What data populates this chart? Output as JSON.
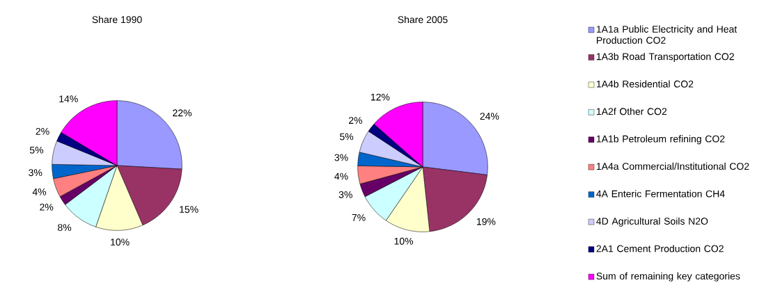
{
  "chart_data": [
    {
      "type": "pie",
      "title": "Share 1990",
      "legend": false,
      "categories": [
        null,
        null,
        null,
        null,
        null,
        null,
        null,
        null,
        null,
        null
      ],
      "values": [
        22,
        15,
        10,
        8,
        2,
        4,
        3,
        5,
        2,
        14
      ],
      "value_labels": [
        "22%",
        "15%",
        "10%",
        "8%",
        "2%",
        "4%",
        "3%",
        "5%",
        "2%",
        "14%"
      ],
      "colors": [
        "#9999ff",
        "#993366",
        "#ffffcc",
        "#ccffff",
        "#660066",
        "#ff8080",
        "#0066cc",
        "#ccccff",
        "#000080",
        "#ff00ff"
      ]
    },
    {
      "type": "pie",
      "title": "Share 2005",
      "legend": "right",
      "categories": [
        "1A1a Public Electricity and Heat Production CO2",
        "1A3b Road Transportation CO2",
        "1A4b Residential CO2",
        "1A2f Other CO2",
        "1A1b Petroleum refining CO2",
        "1A4a Commercial/Institutional CO2",
        "4A Enteric Fermentation CH4",
        "4D Agricultural Soils N2O",
        "2A1 Cement Production CO2",
        "Sum of remaining key categories"
      ],
      "values": [
        24,
        19,
        10,
        7,
        3,
        4,
        3,
        5,
        2,
        12
      ],
      "value_labels": [
        "24%",
        "19%",
        "10%",
        "7%",
        "3%",
        "4%",
        "3%",
        "5%",
        "2%",
        "12%"
      ],
      "colors": [
        "#9999ff",
        "#993366",
        "#ffffcc",
        "#ccffff",
        "#660066",
        "#ff8080",
        "#0066cc",
        "#ccccff",
        "#000080",
        "#ff00ff"
      ]
    }
  ]
}
